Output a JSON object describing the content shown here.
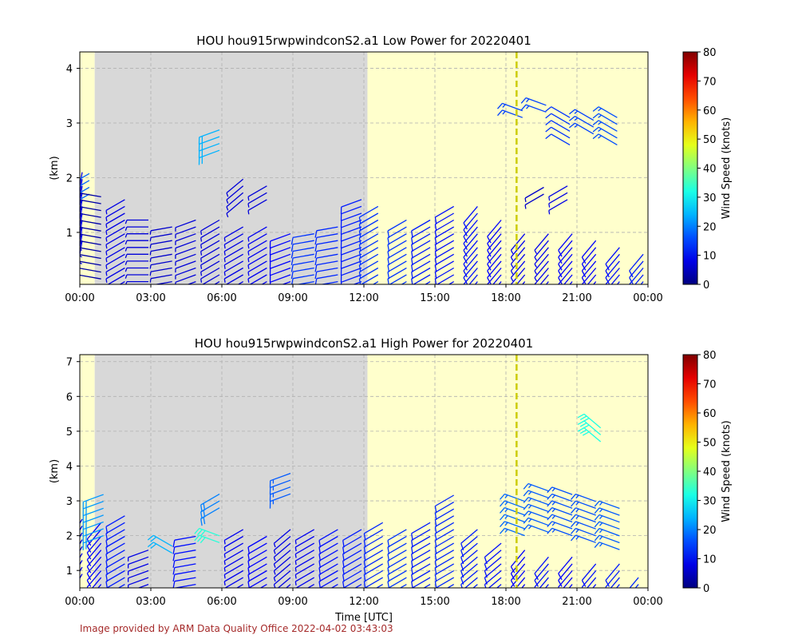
{
  "footer": "Image provided by ARM Data Quality Office 2022-04-02 03:43:03",
  "colors": {
    "night_shade": "#d8d8d8",
    "day_shade": "#ffffcc",
    "marker_line": "#cccc00",
    "grid": "#b0b0b0"
  },
  "colorbar": {
    "label": "Wind Speed (knots)",
    "ticks": [
      "0",
      "10",
      "20",
      "30",
      "40",
      "50",
      "60",
      "70",
      "80"
    ],
    "range": [
      0,
      80
    ],
    "colormap": "jet"
  },
  "chart_data": [
    {
      "type": "wind-barbs",
      "title": "HOU hou915rwpwindconS2.a1 Low Power for 20220401",
      "xlabel": "",
      "ylabel": "(km)",
      "xlim": [
        0,
        24
      ],
      "ylim": [
        0.05,
        4.3
      ],
      "x_tick_labels": [
        "00:00",
        "03:00",
        "06:00",
        "09:00",
        "12:00",
        "15:00",
        "18:00",
        "21:00",
        "00:00"
      ],
      "y_ticks": [
        1,
        2,
        3,
        4
      ],
      "grid": true,
      "shaded_periods": [
        {
          "kind": "day",
          "start": 0,
          "end": 0.63
        },
        {
          "kind": "night",
          "start": 0.63,
          "end": 12.15
        },
        {
          "kind": "day",
          "start": 12.15,
          "end": 24
        }
      ],
      "vertical_line_hour": 18.45,
      "barbs": [
        {
          "x": 0.1,
          "y_min": 0.85,
          "y_max": 2.15,
          "speed": 8,
          "dir": 350
        },
        {
          "x": 0.4,
          "y_min": 1.7,
          "y_max": 2.15,
          "speed": 18,
          "dir": 300
        },
        {
          "x": 0.9,
          "y_min": 0.15,
          "y_max": 1.7,
          "speed": 3,
          "dir": 260
        },
        {
          "x": 1.9,
          "y_min": 0.1,
          "y_max": 1.7,
          "speed": 8,
          "dir": 300
        },
        {
          "x": 2.9,
          "y_min": 0.1,
          "y_max": 1.3,
          "speed": 7,
          "dir": 270
        },
        {
          "x": 3.9,
          "y_min": 0.1,
          "y_max": 1.2,
          "speed": 6,
          "dir": 280
        },
        {
          "x": 4.9,
          "y_min": 0.1,
          "y_max": 1.3,
          "speed": 7,
          "dir": 290
        },
        {
          "x": 5.9,
          "y_min": 0.1,
          "y_max": 1.3,
          "speed": 7,
          "dir": 300
        },
        {
          "x": 5.9,
          "y_min": 2.5,
          "y_max": 2.9,
          "speed": 24,
          "dir": 290
        },
        {
          "x": 6.9,
          "y_min": 0.1,
          "y_max": 1.2,
          "speed": 8,
          "dir": 300
        },
        {
          "x": 6.9,
          "y_min": 1.6,
          "y_max": 2.0,
          "speed": 7,
          "dir": 310
        },
        {
          "x": 7.9,
          "y_min": 0.1,
          "y_max": 1.1,
          "speed": 9,
          "dir": 300
        },
        {
          "x": 7.9,
          "y_min": 1.6,
          "y_max": 1.9,
          "speed": 7,
          "dir": 300
        },
        {
          "x": 8.9,
          "y_min": 0.1,
          "y_max": 1.0,
          "speed": 10,
          "dir": 290
        },
        {
          "x": 9.9,
          "y_min": 0.1,
          "y_max": 1.0,
          "speed": 14,
          "dir": 280
        },
        {
          "x": 10.9,
          "y_min": 0.1,
          "y_max": 1.1,
          "speed": 13,
          "dir": 280
        },
        {
          "x": 11.9,
          "y_min": 0.1,
          "y_max": 1.7,
          "speed": 12,
          "dir": 290
        },
        {
          "x": 12.6,
          "y_min": 0.1,
          "y_max": 1.5,
          "speed": 14,
          "dir": 300
        },
        {
          "x": 13.8,
          "y_min": 0.1,
          "y_max": 1.3,
          "speed": 14,
          "dir": 300
        },
        {
          "x": 14.8,
          "y_min": 0.1,
          "y_max": 1.3,
          "speed": 12,
          "dir": 300
        },
        {
          "x": 15.8,
          "y_min": 0.1,
          "y_max": 1.5,
          "speed": 11,
          "dir": 300
        },
        {
          "x": 16.8,
          "y_min": 0.1,
          "y_max": 1.5,
          "speed": 11,
          "dir": 320
        },
        {
          "x": 17.8,
          "y_min": 0.1,
          "y_max": 1.3,
          "speed": 10,
          "dir": 320
        },
        {
          "x": 18.8,
          "y_min": 0.1,
          "y_max": 1.0,
          "speed": 9,
          "dir": 320
        },
        {
          "x": 19.8,
          "y_min": 0.1,
          "y_max": 1.0,
          "speed": 9,
          "dir": 320
        },
        {
          "x": 20.8,
          "y_min": 0.1,
          "y_max": 1.0,
          "speed": 10,
          "dir": 320
        },
        {
          "x": 21.8,
          "y_min": 0.1,
          "y_max": 0.9,
          "speed": 10,
          "dir": 320
        },
        {
          "x": 22.8,
          "y_min": 0.1,
          "y_max": 0.8,
          "speed": 11,
          "dir": 320
        },
        {
          "x": 23.8,
          "y_min": 0.1,
          "y_max": 0.6,
          "speed": 12,
          "dir": 320
        },
        {
          "x": 19.6,
          "y_min": 1.7,
          "y_max": 1.9,
          "speed": 6,
          "dir": 300
        },
        {
          "x": 20.6,
          "y_min": 1.6,
          "y_max": 1.9,
          "speed": 8,
          "dir": 300
        },
        {
          "x": 18.7,
          "y_min": 3.1,
          "y_max": 3.3,
          "speed": 15,
          "dir": 250
        },
        {
          "x": 19.7,
          "y_min": 3.2,
          "y_max": 3.4,
          "speed": 15,
          "dir": 250
        },
        {
          "x": 20.7,
          "y_min": 2.6,
          "y_max": 3.2,
          "speed": 14,
          "dir": 240
        },
        {
          "x": 21.7,
          "y_min": 2.8,
          "y_max": 3.1,
          "speed": 15,
          "dir": 240
        },
        {
          "x": 22.7,
          "y_min": 2.6,
          "y_max": 3.1,
          "speed": 16,
          "dir": 240
        }
      ]
    },
    {
      "type": "wind-barbs",
      "title": "HOU hou915rwpwindconS2.a1 High Power for 20220401",
      "xlabel": "Time [UTC]",
      "ylabel": "(km)",
      "xlim": [
        0,
        24
      ],
      "ylim": [
        0.5,
        7.2
      ],
      "x_tick_labels": [
        "00:00",
        "03:00",
        "06:00",
        "09:00",
        "12:00",
        "15:00",
        "18:00",
        "21:00",
        "00:00"
      ],
      "y_ticks": [
        1,
        2,
        3,
        4,
        5,
        6,
        7
      ],
      "grid": true,
      "shaded_periods": [
        {
          "kind": "day",
          "start": 0,
          "end": 0.63
        },
        {
          "kind": "night",
          "start": 0.63,
          "end": 12.15
        },
        {
          "kind": "day",
          "start": 12.15,
          "end": 24
        }
      ],
      "vertical_line_hour": 18.45,
      "barbs": [
        {
          "x": 0.1,
          "y_min": 0.9,
          "y_max": 2.6,
          "speed": 8,
          "dir": 330
        },
        {
          "x": 0.9,
          "y_min": 0.6,
          "y_max": 2.4,
          "speed": 10,
          "dir": 320
        },
        {
          "x": 1.0,
          "y_min": 2.0,
          "y_max": 3.3,
          "speed": 22,
          "dir": 290
        },
        {
          "x": 1.9,
          "y_min": 0.6,
          "y_max": 2.6,
          "speed": 12,
          "dir": 300
        },
        {
          "x": 2.9,
          "y_min": 0.6,
          "y_max": 1.6,
          "speed": 8,
          "dir": 290
        },
        {
          "x": 3.9,
          "y_min": 1.5,
          "y_max": 1.8,
          "speed": 24,
          "dir": 240
        },
        {
          "x": 4.9,
          "y_min": 0.6,
          "y_max": 2.0,
          "speed": 11,
          "dir": 280
        },
        {
          "x": 5.9,
          "y_min": 1.8,
          "y_max": 2.1,
          "speed": 33,
          "dir": 250
        },
        {
          "x": 5.9,
          "y_min": 2.8,
          "y_max": 3.3,
          "speed": 20,
          "dir": 300
        },
        {
          "x": 6.9,
          "y_min": 0.6,
          "y_max": 2.2,
          "speed": 9,
          "dir": 300
        },
        {
          "x": 7.9,
          "y_min": 0.6,
          "y_max": 2.1,
          "speed": 10,
          "dir": 300
        },
        {
          "x": 8.9,
          "y_min": 0.6,
          "y_max": 2.3,
          "speed": 8,
          "dir": 310
        },
        {
          "x": 8.9,
          "y_min": 3.2,
          "y_max": 3.9,
          "speed": 17,
          "dir": 290
        },
        {
          "x": 9.9,
          "y_min": 0.6,
          "y_max": 2.2,
          "speed": 9,
          "dir": 300
        },
        {
          "x": 10.9,
          "y_min": 0.6,
          "y_max": 2.2,
          "speed": 11,
          "dir": 300
        },
        {
          "x": 11.9,
          "y_min": 0.6,
          "y_max": 2.3,
          "speed": 12,
          "dir": 300
        },
        {
          "x": 12.8,
          "y_min": 0.6,
          "y_max": 2.4,
          "speed": 13,
          "dir": 300
        },
        {
          "x": 13.8,
          "y_min": 0.6,
          "y_max": 2.2,
          "speed": 14,
          "dir": 300
        },
        {
          "x": 14.8,
          "y_min": 0.6,
          "y_max": 2.4,
          "speed": 12,
          "dir": 300
        },
        {
          "x": 15.8,
          "y_min": 0.6,
          "y_max": 3.3,
          "speed": 13,
          "dir": 300
        },
        {
          "x": 16.8,
          "y_min": 0.6,
          "y_max": 2.3,
          "speed": 12,
          "dir": 310
        },
        {
          "x": 17.8,
          "y_min": 0.6,
          "y_max": 1.8,
          "speed": 11,
          "dir": 310
        },
        {
          "x": 18.8,
          "y_min": 0.6,
          "y_max": 1.6,
          "speed": 10,
          "dir": 320
        },
        {
          "x": 19.8,
          "y_min": 0.6,
          "y_max": 1.4,
          "speed": 11,
          "dir": 320
        },
        {
          "x": 20.8,
          "y_min": 0.6,
          "y_max": 1.4,
          "speed": 10,
          "dir": 320
        },
        {
          "x": 21.8,
          "y_min": 0.6,
          "y_max": 1.3,
          "speed": 11,
          "dir": 320
        },
        {
          "x": 22.8,
          "y_min": 0.6,
          "y_max": 1.2,
          "speed": 12,
          "dir": 320
        },
        {
          "x": 23.6,
          "y_min": 0.6,
          "y_max": 0.8,
          "speed": 13,
          "dir": 320
        },
        {
          "x": 18.8,
          "y_min": 2.0,
          "y_max": 3.1,
          "speed": 18,
          "dir": 250
        },
        {
          "x": 19.8,
          "y_min": 2.1,
          "y_max": 3.3,
          "speed": 17,
          "dir": 250
        },
        {
          "x": 20.8,
          "y_min": 2.0,
          "y_max": 3.2,
          "speed": 16,
          "dir": 250
        },
        {
          "x": 21.8,
          "y_min": 1.8,
          "y_max": 3.1,
          "speed": 16,
          "dir": 250
        },
        {
          "x": 22.8,
          "y_min": 1.6,
          "y_max": 2.8,
          "speed": 17,
          "dir": 250
        },
        {
          "x": 22.0,
          "y_min": 4.7,
          "y_max": 5.1,
          "speed": 32,
          "dir": 230
        }
      ]
    }
  ]
}
